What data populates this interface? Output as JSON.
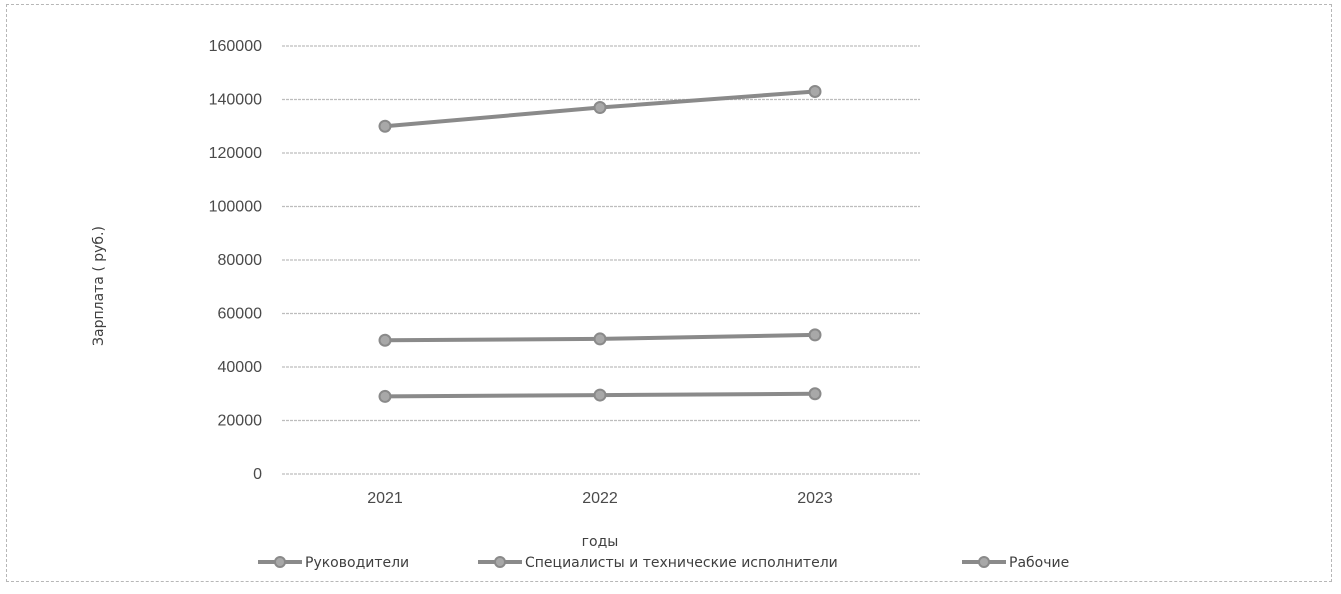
{
  "chart_data": {
    "type": "line",
    "title": "",
    "xlabel": "годы",
    "ylabel": "Зарплата ( руб.)",
    "categories": [
      "2021",
      "2022",
      "2023"
    ],
    "y_ticks": [
      "0",
      "20000",
      "40000",
      "60000",
      "80000",
      "100000",
      "120000",
      "140000",
      "160000"
    ],
    "ylim": [
      0,
      160000
    ],
    "grid": true,
    "legend_position": "bottom",
    "series": [
      {
        "name": "Руководители",
        "values": [
          130000,
          137000,
          143000
        ]
      },
      {
        "name": "Специалисты и технические исполнители",
        "values": [
          50000,
          50500,
          52000
        ]
      },
      {
        "name": "Рабочие",
        "values": [
          29000,
          29500,
          30000
        ]
      }
    ],
    "colors": {
      "line": "#8a8a8a",
      "grid": "#bdbdbd",
      "text": "#4a4a4a"
    }
  }
}
